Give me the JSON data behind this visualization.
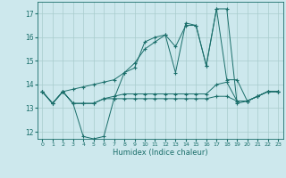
{
  "xlabel": "Humidex (Indice chaleur)",
  "xlim": [
    -0.5,
    23.5
  ],
  "ylim": [
    11.7,
    17.5
  ],
  "yticks": [
    12,
    13,
    14,
    15,
    16,
    17
  ],
  "xticks": [
    0,
    1,
    2,
    3,
    4,
    5,
    6,
    7,
    8,
    9,
    10,
    11,
    12,
    13,
    14,
    15,
    16,
    17,
    18,
    19,
    20,
    21,
    22,
    23
  ],
  "bg_color": "#cde8ed",
  "grid_color": "#a8cccc",
  "line_color": "#1a6e6a",
  "line1": [
    13.7,
    13.2,
    13.7,
    13.2,
    11.8,
    11.7,
    11.8,
    13.4,
    14.5,
    14.9,
    15.5,
    15.8,
    16.1,
    14.5,
    16.6,
    16.5,
    14.8,
    17.2,
    17.2,
    13.2,
    13.3,
    13.5,
    13.7,
    13.7
  ],
  "line2": [
    13.7,
    13.2,
    13.7,
    13.8,
    13.9,
    14.0,
    14.1,
    14.2,
    14.5,
    14.7,
    15.8,
    16.0,
    16.1,
    15.6,
    16.5,
    16.5,
    14.8,
    17.2,
    14.2,
    14.2,
    13.3,
    13.5,
    13.7,
    13.7
  ],
  "line3": [
    13.7,
    13.2,
    13.7,
    13.2,
    13.2,
    13.2,
    13.4,
    13.5,
    13.6,
    13.6,
    13.6,
    13.6,
    13.6,
    13.6,
    13.6,
    13.6,
    13.6,
    14.0,
    14.1,
    13.3,
    13.3,
    13.5,
    13.7,
    13.7
  ],
  "line4": [
    13.7,
    13.2,
    13.7,
    13.2,
    13.2,
    13.2,
    13.4,
    13.4,
    13.4,
    13.4,
    13.4,
    13.4,
    13.4,
    13.4,
    13.4,
    13.4,
    13.4,
    13.5,
    13.5,
    13.3,
    13.3,
    13.5,
    13.7,
    13.7
  ]
}
